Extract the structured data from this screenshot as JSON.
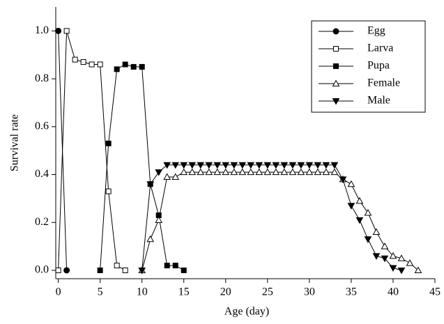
{
  "chart_data": {
    "type": "line",
    "xlabel": "Age (day)",
    "ylabel": "Survival rate",
    "xlim": [
      -0.3,
      45
    ],
    "xticks": [
      0,
      5,
      10,
      15,
      20,
      25,
      30,
      35,
      40,
      45
    ],
    "ylim": [
      -0.035,
      1.1
    ],
    "yticks": [
      {
        "value": 0,
        "label": "0.0"
      },
      0.2,
      0.4,
      0.6,
      0.8,
      {
        "value": 1,
        "label": "1.0"
      }
    ],
    "legend": "upper right",
    "series": [
      {
        "name": "Egg",
        "color": "#000000",
        "marker": "circle",
        "filled": true,
        "x": [
          0,
          1
        ],
        "values": [
          1.0,
          0
        ]
      },
      {
        "name": "Larva",
        "color": "#000000",
        "marker": "square",
        "filled": false,
        "x": [
          0,
          1,
          2,
          3,
          4,
          5,
          6,
          7,
          8
        ],
        "values": [
          0,
          1.0,
          0.88,
          0.87,
          0.86,
          0.86,
          0.33,
          0.02,
          0
        ]
      },
      {
        "name": "Pupa",
        "color": "#000000",
        "marker": "square",
        "filled": true,
        "x": [
          5,
          6,
          7,
          8,
          9,
          10,
          11,
          12,
          13,
          14,
          15
        ],
        "values": [
          0,
          0.53,
          0.84,
          0.86,
          0.85,
          0.85,
          0.36,
          0.23,
          0.02,
          0.02,
          0
        ]
      },
      {
        "name": "Female",
        "color": "#000000",
        "marker": "triangle-up",
        "filled": false,
        "x": [
          10,
          11,
          12,
          13,
          14,
          15,
          16,
          17,
          18,
          19,
          20,
          21,
          22,
          23,
          24,
          25,
          26,
          27,
          28,
          29,
          30,
          31,
          32,
          33,
          34,
          35,
          36,
          37,
          38,
          39,
          40,
          41,
          42,
          43
        ],
        "values": [
          0,
          0.13,
          0.21,
          0.39,
          0.39,
          0.41,
          0.41,
          0.41,
          0.41,
          0.41,
          0.41,
          0.41,
          0.41,
          0.41,
          0.41,
          0.41,
          0.41,
          0.41,
          0.41,
          0.41,
          0.41,
          0.41,
          0.41,
          0.41,
          0.38,
          0.36,
          0.29,
          0.24,
          0.16,
          0.1,
          0.06,
          0.05,
          0.03,
          0
        ]
      },
      {
        "name": "Male",
        "color": "#000000",
        "marker": "triangle-down",
        "filled": true,
        "x": [
          10,
          11,
          12,
          13,
          14,
          15,
          16,
          17,
          18,
          19,
          20,
          21,
          22,
          23,
          24,
          25,
          26,
          27,
          28,
          29,
          30,
          31,
          32,
          33,
          34,
          35,
          36,
          37,
          38,
          39,
          40,
          41
        ],
        "values": [
          0,
          0.36,
          0.41,
          0.44,
          0.44,
          0.44,
          0.44,
          0.44,
          0.44,
          0.44,
          0.44,
          0.44,
          0.44,
          0.44,
          0.44,
          0.44,
          0.44,
          0.44,
          0.44,
          0.44,
          0.44,
          0.44,
          0.44,
          0.44,
          0.38,
          0.27,
          0.21,
          0.13,
          0.06,
          0.05,
          0.01,
          0
        ]
      }
    ]
  }
}
